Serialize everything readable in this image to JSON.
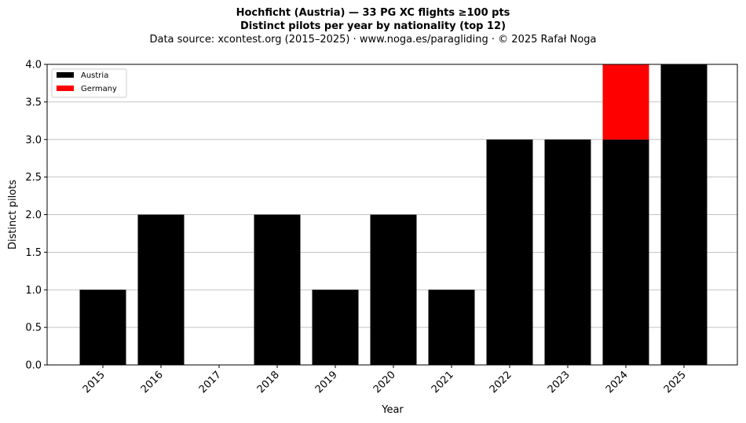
{
  "chart_data": {
    "type": "bar",
    "title": "Hochficht (Austria)  —  33 PG XC flights ≥100 pts",
    "title2": "Distinct pilots per year by nationality (top 12)",
    "subtitle": "Data source: xcontest.org (2015–2025)  ·  www.noga.es/paragliding  ·  © 2025 Rafał Noga",
    "xlabel": "Year",
    "ylabel": "Distinct pilots",
    "categories": [
      "2015",
      "2016",
      "2017",
      "2018",
      "2019",
      "2020",
      "2021",
      "2022",
      "2023",
      "2024",
      "2025"
    ],
    "stacked": true,
    "series": [
      {
        "name": "Austria",
        "color": "#000000",
        "values": [
          1,
          2,
          0,
          2,
          1,
          2,
          1,
          3,
          3,
          3,
          4
        ]
      },
      {
        "name": "Germany",
        "color": "#ff0000",
        "values": [
          0,
          0,
          0,
          0,
          0,
          0,
          0,
          0,
          0,
          1,
          0
        ]
      }
    ],
    "ylim": [
      0,
      4
    ],
    "yticks": [
      "0.0",
      "0.5",
      "1.0",
      "1.5",
      "2.0",
      "2.5",
      "3.0",
      "3.5",
      "4.0"
    ],
    "grid": "y",
    "legend": "top-left"
  }
}
